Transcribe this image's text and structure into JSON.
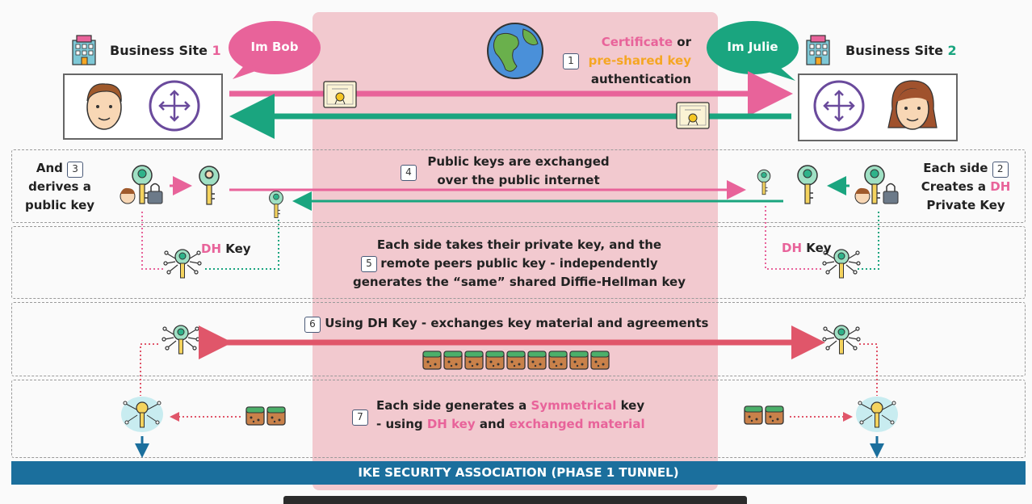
{
  "site1": {
    "label": "Business Site",
    "num": "1"
  },
  "site2": {
    "label": "Business Site",
    "num": "2"
  },
  "bubbles": {
    "bob": "Im Bob",
    "julie": "Im Julie"
  },
  "step1": {
    "num": "1",
    "certificate": "Certificate",
    "or": " or",
    "psk": "pre-shared key",
    "authentication": "authentication"
  },
  "step2": {
    "num": "2",
    "line1": "Each side",
    "line2a": "Creates a ",
    "line2b": "DH",
    "line3": "Private Key"
  },
  "step3": {
    "num": "3",
    "line1": "And",
    "line2": "derives a",
    "line3": "public key"
  },
  "step4": {
    "num": "4",
    "line1": "Public keys are exchanged",
    "line2": "over the public internet"
  },
  "step5": {
    "num": "5",
    "line1": "Each side takes their private key, and the",
    "line2": "remote peers public key - independently",
    "line3": "generates the “same” shared Diffie-Hellman key"
  },
  "dhkey_left": {
    "dh": "DH",
    "key": " Key"
  },
  "dhkey_right": {
    "dh": "DH",
    "key": " Key"
  },
  "step6": {
    "num": "6",
    "text": "Using DH Key - exchanges key material and agreements"
  },
  "step7": {
    "num": "7",
    "line1a": "Each side generates a ",
    "line1b": "Symmetrical",
    "line1c": " key",
    "line2a": "- using ",
    "line2b": "DH key",
    "line2c": " and ",
    "line2d": "exchanged material"
  },
  "banner": "IKE SECURITY ASSOCIATION (PHASE 1 TUNNEL)",
  "colors": {
    "pink": "#e8639a",
    "green": "#1aa57f",
    "red": "#e0566a",
    "blue": "#1b6f9d",
    "orange": "#f5a623",
    "purple": "#6a4a9c"
  }
}
